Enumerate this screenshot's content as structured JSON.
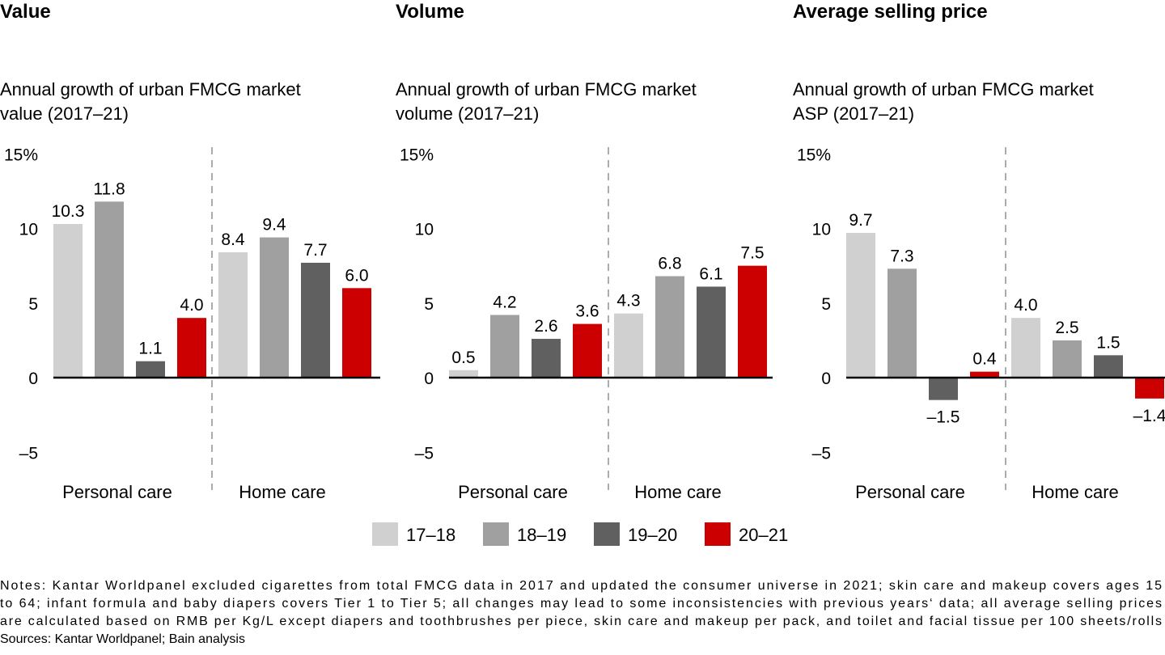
{
  "chart_data": [
    {
      "type": "bar",
      "title": "Value",
      "subtitle": [
        "Annual growth of urban FMCG market",
        "value (2017–21)"
      ],
      "categories": [
        "Personal care",
        "Home care"
      ],
      "series": [
        {
          "name": "17–18",
          "values": [
            10.3,
            8.4
          ]
        },
        {
          "name": "18–19",
          "values": [
            11.8,
            9.4
          ]
        },
        {
          "name": "19–20",
          "values": [
            1.1,
            7.7
          ]
        },
        {
          "name": "20–21",
          "values": [
            4.0,
            6.0
          ]
        }
      ],
      "yticks": [
        "15%",
        "10",
        "5",
        "0",
        "–5"
      ],
      "ylim": [
        -5,
        15
      ]
    },
    {
      "type": "bar",
      "title": "Volume",
      "subtitle": [
        "Annual growth of urban FMCG market",
        "volume (2017–21)"
      ],
      "categories": [
        "Personal care",
        "Home care"
      ],
      "series": [
        {
          "name": "17–18",
          "values": [
            0.5,
            4.3
          ]
        },
        {
          "name": "18–19",
          "values": [
            4.2,
            6.8
          ]
        },
        {
          "name": "19–20",
          "values": [
            2.6,
            6.1
          ]
        },
        {
          "name": "20–21",
          "values": [
            3.6,
            7.5
          ]
        }
      ],
      "yticks": [
        "15%",
        "10",
        "5",
        "0",
        "–5"
      ],
      "ylim": [
        -5,
        15
      ]
    },
    {
      "type": "bar",
      "title": "Average selling price",
      "subtitle": [
        "Annual growth of urban FMCG market",
        "ASP (2017–21)"
      ],
      "categories": [
        "Personal care",
        "Home care"
      ],
      "series": [
        {
          "name": "17–18",
          "values": [
            9.7,
            4.0
          ]
        },
        {
          "name": "18–19",
          "values": [
            7.3,
            2.5
          ]
        },
        {
          "name": "19–20",
          "values": [
            -1.5,
            1.5
          ]
        },
        {
          "name": "20–21",
          "values": [
            0.4,
            -1.4
          ]
        }
      ],
      "yticks": [
        "15%",
        "10",
        "5",
        "0",
        "–5"
      ],
      "ylim": [
        -5,
        15
      ]
    }
  ],
  "legend": {
    "placement": "bottom",
    "items": [
      {
        "label": "17–18",
        "color": "#d0d0d0"
      },
      {
        "label": "18–19",
        "color": "#a0a0a0"
      },
      {
        "label": "19–20",
        "color": "#606060"
      },
      {
        "label": "20–21",
        "color": "#cc0000"
      }
    ]
  },
  "notes": [
    "Notes: Kantar Worldpanel excluded cigarettes from total FMCG data in 2017 and updated the consumer universe in 2021; skin care and makeup covers ages 15",
    "to 64; infant formula and baby diapers covers Tier 1 to Tier 5; all changes may lead to some inconsistencies with previous years‘ data; all average selling prices",
    "are calculated based on RMB per Kg/L except diapers and toothbrushes per piece, skin care and makeup per pack, and toilet and facial tissue per 100 sheets/rolls",
    "Sources: Kantar Worldpanel; Bain analysis"
  ]
}
